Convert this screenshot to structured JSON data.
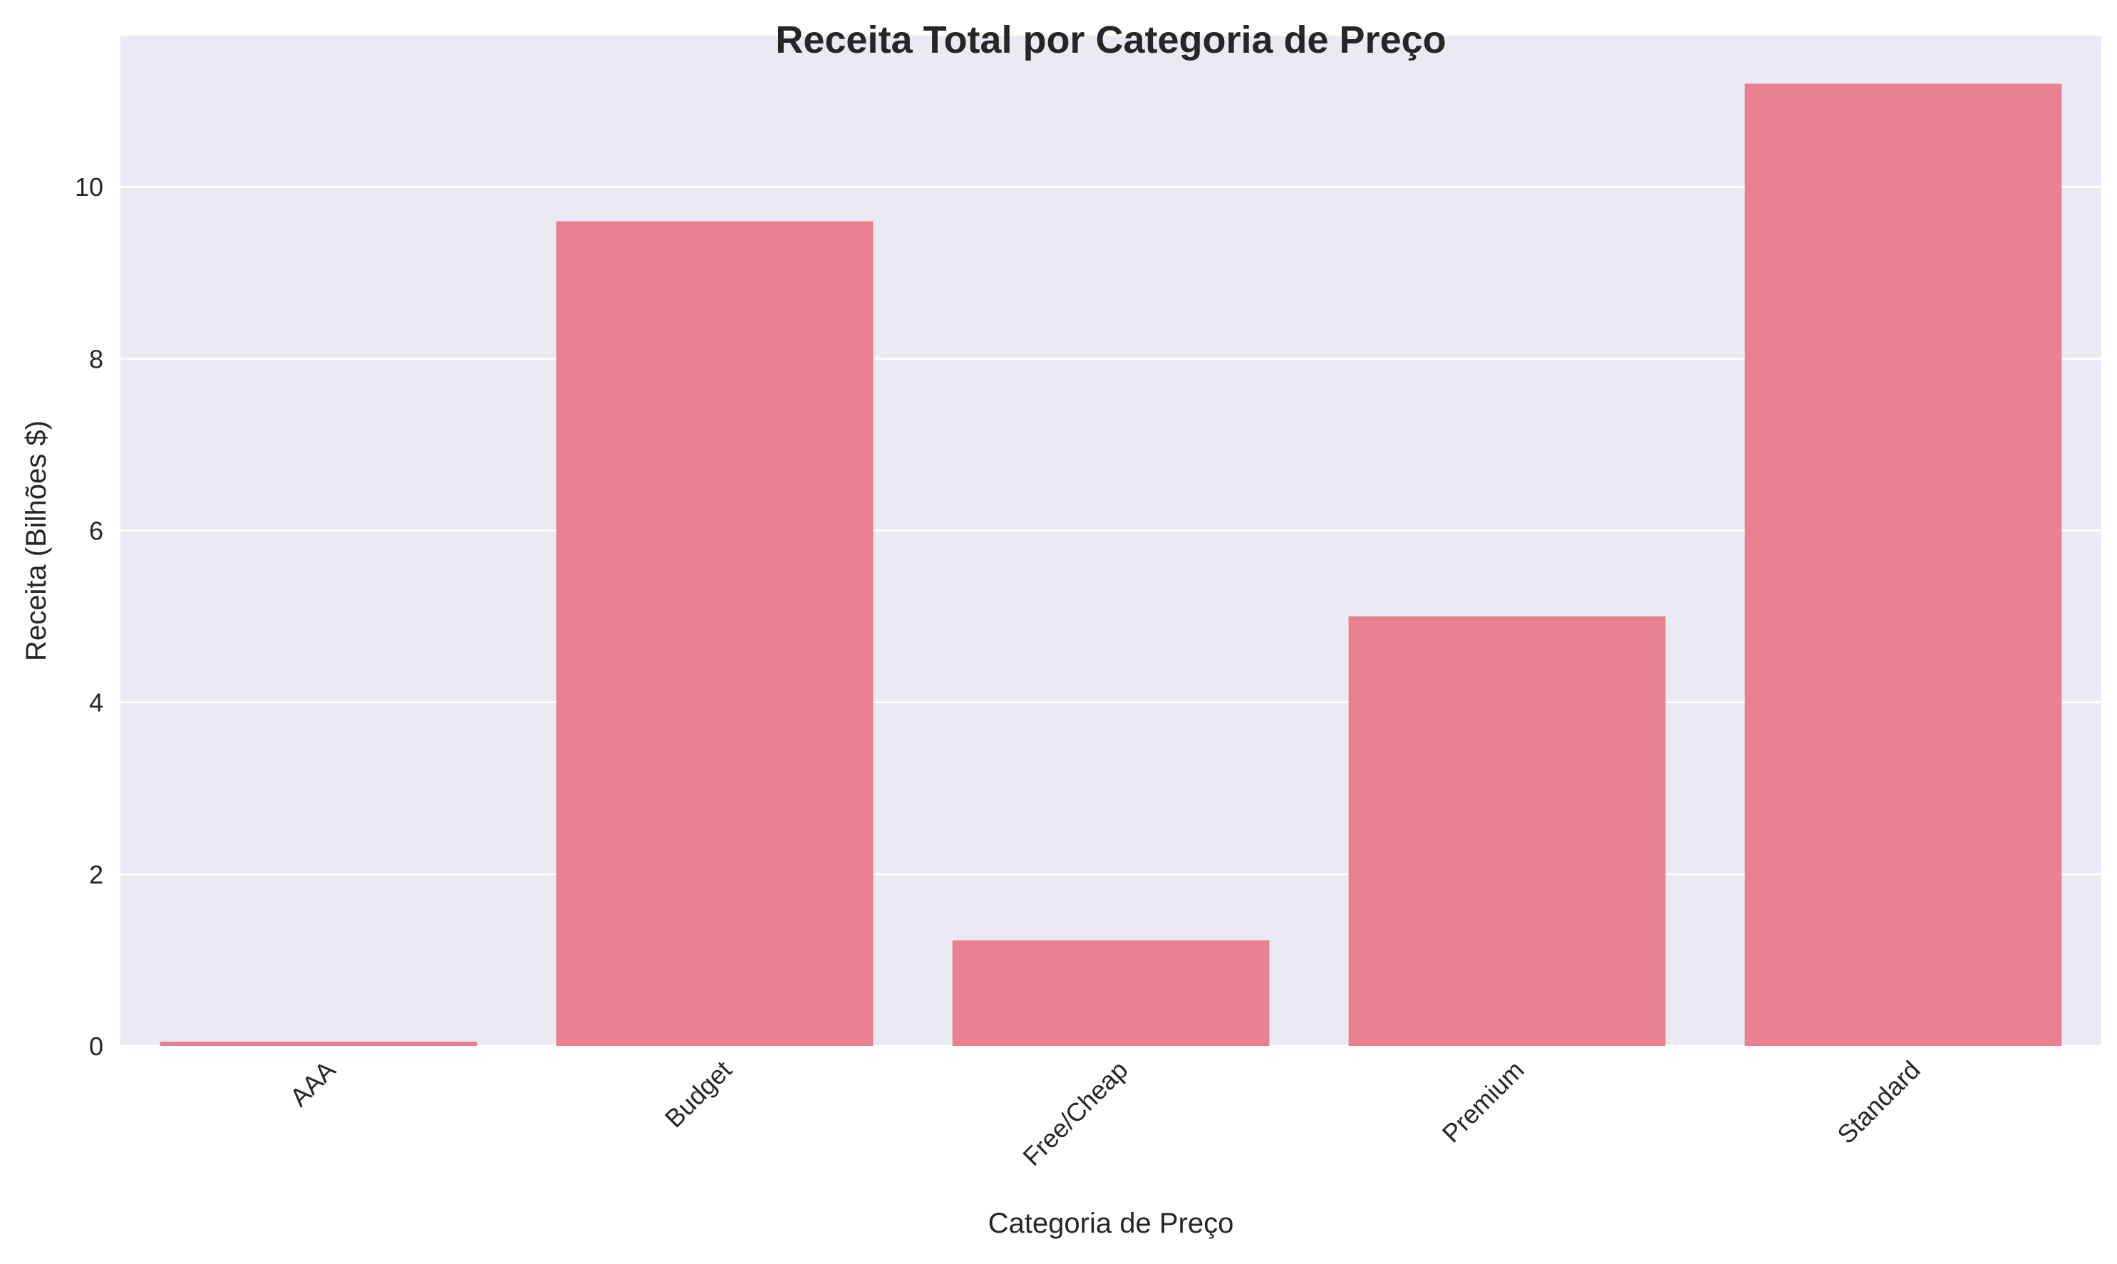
{
  "chart_data": {
    "type": "bar",
    "title": "Receita Total por Categoria de Preço",
    "xlabel": "Categoria de Preço",
    "ylabel": "Receita (Bilhões $)",
    "categories": [
      "AAA",
      "Budget",
      "Free/Cheap",
      "Premium",
      "Standard"
    ],
    "values": [
      0.05,
      9.6,
      1.23,
      5.0,
      11.2
    ],
    "ylim": [
      0,
      11.76
    ],
    "yticks": [
      0,
      2,
      4,
      6,
      8,
      10
    ],
    "grid": true,
    "legend": "none",
    "colors": {
      "bar": "#e88092",
      "plot_background": "#eaeaf2",
      "grid": "#ffffff",
      "text": "#262626"
    }
  }
}
